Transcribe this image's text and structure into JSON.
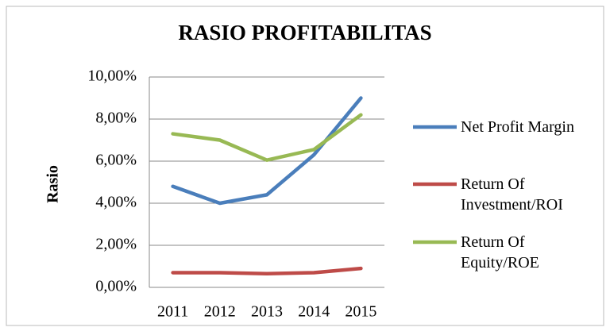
{
  "chart_data": {
    "type": "line",
    "title": "RASIO PROFITABILITAS",
    "y_label": "Rasio",
    "categories": [
      "2011",
      "2012",
      "2013",
      "2014",
      "2015"
    ],
    "series": [
      {
        "name": "Net Profit Margin",
        "color": "#4a7ebb",
        "values": [
          4.8,
          4.0,
          4.4,
          6.3,
          9.0
        ]
      },
      {
        "name": "Return Of Investment/ROI",
        "color": "#be4b48",
        "values": [
          0.7,
          0.7,
          0.65,
          0.7,
          0.9
        ]
      },
      {
        "name": "Return Of Equity/ROE",
        "color": "#98b954",
        "values": [
          7.3,
          7.0,
          6.05,
          6.55,
          8.2
        ]
      }
    ],
    "ylim": [
      0,
      10
    ],
    "yticks": [
      {
        "value": 0,
        "label": "0,00%"
      },
      {
        "value": 2,
        "label": "2,00%"
      },
      {
        "value": 4,
        "label": "4,00%"
      },
      {
        "value": 6,
        "label": "6,00%"
      },
      {
        "value": 8,
        "label": "8,00%"
      },
      {
        "value": 10,
        "label": "10,00%"
      }
    ],
    "grid": true,
    "legend": "right"
  }
}
